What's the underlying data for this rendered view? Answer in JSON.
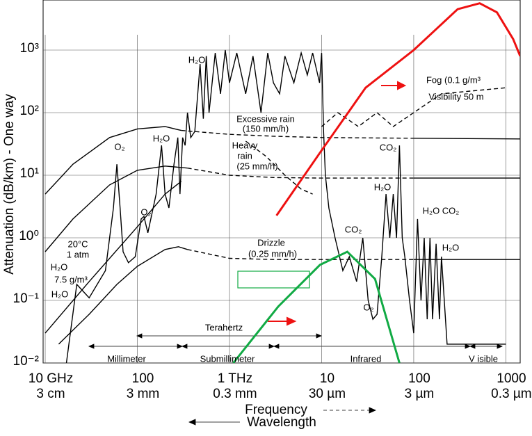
{
  "chart_data": {
    "type": "line",
    "y_label": "Attenuation (dB/km) - One way",
    "x_label": "Frequency",
    "x2_label": "Wavelength",
    "x_log": true,
    "y_log": true,
    "grid": true,
    "xlim": [
      9.49,
      1430000
    ],
    "ylim": [
      0.01,
      6310
    ],
    "xticks": [
      {
        "value": 10,
        "label": "10 GHz"
      },
      100,
      {
        "value": 1000,
        "label": "1 THz"
      },
      {
        "value": 10000,
        "label": "10"
      },
      {
        "value": 100000,
        "label": "100"
      },
      {
        "value": 1000000,
        "label": "1000"
      }
    ],
    "wavelength_ticks": [
      {
        "value": 10,
        "label": "3 cm"
      },
      {
        "value": 100,
        "label": "3 mm"
      },
      {
        "value": 1000,
        "label": "0.3 mm"
      },
      {
        "value": 10000,
        "label": "30 µm"
      },
      {
        "value": 100000,
        "label": "3 µm"
      },
      {
        "value": 1000000,
        "label": "0.3 µm"
      }
    ],
    "yticks": [
      {
        "value": 0.01,
        "label": "10⁻²"
      },
      {
        "value": 0.1,
        "label": "10⁻¹"
      },
      {
        "value": 1,
        "label": "10⁰"
      },
      {
        "value": 10,
        "label": "10¹"
      },
      {
        "value": 100,
        "label": "10²"
      },
      {
        "value": 1000,
        "label": "10³"
      }
    ],
    "series": [
      {
        "color": "#000000",
        "dash": false,
        "x": [
          10,
          20,
          50,
          100,
          200,
          300
        ],
        "values": [
          5,
          15,
          40,
          55,
          60,
          52
        ]
      },
      {
        "color": "#000000",
        "dash": true,
        "x": [
          300,
          1000,
          3000,
          10000,
          100000
        ],
        "values": [
          52,
          45,
          42,
          40,
          39
        ]
      },
      {
        "color": "#000000",
        "dash": false,
        "x": [
          100000,
          1430000
        ],
        "values": [
          39,
          38
        ]
      },
      {
        "color": "#000000",
        "dash": false,
        "x": [
          10,
          20,
          50,
          100,
          200,
          350
        ],
        "values": [
          0.6,
          2,
          7,
          12,
          14,
          13
        ]
      },
      {
        "color": "#000000",
        "dash": true,
        "x": [
          350,
          1000,
          3000,
          10000,
          100000
        ],
        "values": [
          13,
          10,
          9.2,
          9,
          9
        ]
      },
      {
        "color": "#000000",
        "dash": false,
        "x": [
          100000,
          1430000
        ],
        "values": [
          9,
          9
        ]
      },
      {
        "color": "#000000",
        "dash": false,
        "x": [
          14,
          30,
          60,
          100,
          200,
          280,
          350
        ],
        "values": [
          0.02,
          0.06,
          0.18,
          0.35,
          0.65,
          0.72,
          0.65
        ]
      },
      {
        "color": "#000000",
        "dash": true,
        "x": [
          350,
          1000,
          3000,
          10000,
          100000
        ],
        "values": [
          0.65,
          0.47,
          0.45,
          0.45,
          0.45
        ]
      },
      {
        "color": "#000000",
        "dash": false,
        "x": [
          100000,
          1430000
        ],
        "values": [
          0.45,
          0.45
        ]
      },
      {
        "color": "#000000",
        "dash": false,
        "x": [
          10,
          30,
          100,
          200,
          300
        ],
        "values": [
          0.03,
          0.2,
          1.5,
          5,
          8
        ]
      },
      {
        "color": "#000000",
        "dash": true,
        "x": [
          1500,
          2500,
          4000,
          6000,
          8000
        ],
        "values": [
          35,
          20,
          10,
          6,
          5
        ]
      },
      {
        "color": "#000000",
        "dash": true,
        "x": [
          10000,
          15000,
          25000,
          40000,
          60000,
          100000,
          200000,
          1000000
        ],
        "values": [
          60,
          100,
          60,
          100,
          60,
          100,
          200,
          250
        ]
      },
      {
        "color": "#000000",
        "dash": false,
        "x": [
          17,
          22,
          30,
          45,
          55,
          60,
          65,
          70,
          80,
          95,
          110,
          118,
          130,
          160,
          183,
          200,
          220,
          250,
          275,
          290,
          310,
          330,
          350,
          380,
          420,
          480,
          520,
          560,
          600,
          700,
          800,
          900,
          1000,
          1200,
          1500,
          1800,
          2200,
          2600,
          3000,
          3500,
          4000,
          5000,
          6000,
          7000,
          8000,
          9500,
          10000,
          10500,
          11000,
          12000,
          14000,
          17000,
          20000,
          24000,
          28000,
          32000,
          36000,
          40000,
          45000,
          50000,
          55000,
          60000,
          65000,
          70000,
          75000,
          80000,
          90000,
          100000,
          110000,
          120000,
          130000,
          140000,
          150000,
          160000,
          175000,
          190000,
          200000,
          230000,
          500000,
          1000000
        ],
        "values": [
          0.01,
          0.18,
          0.11,
          0.3,
          3,
          15,
          3,
          0.6,
          0.4,
          0.5,
          2,
          2.2,
          1.2,
          5,
          30,
          5,
          3,
          15,
          40,
          5,
          40,
          30,
          100,
          40,
          50,
          600,
          80,
          800,
          100,
          900,
          200,
          1000,
          300,
          900,
          200,
          800,
          100,
          900,
          300,
          200,
          800,
          300,
          900,
          400,
          900,
          300,
          900,
          50,
          10,
          3,
          1,
          0.3,
          0.5,
          0.2,
          1,
          0.1,
          0.05,
          0.06,
          0.5,
          5,
          1,
          5,
          1,
          30,
          1,
          0.5,
          0.1,
          0.03,
          2,
          0.1,
          1,
          0.05,
          1,
          0.05,
          0.8,
          0.05,
          0.5,
          0.02,
          0.02,
          0.02
        ]
      },
      {
        "color": "#ee1111",
        "dash": false,
        "x": [
          3240,
          10000,
          30000,
          100000,
          300000,
          520000,
          800000,
          1200000,
          1430000
        ],
        "values": [
          2.27,
          25,
          250,
          1000,
          4500,
          5600,
          4000,
          1500,
          800
        ]
      },
      {
        "color": "#11aa44",
        "dash": false,
        "x": [
          1100,
          3390,
          9600,
          19000,
          38000,
          70000
        ],
        "values": [
          0.01,
          0.08,
          0.37,
          0.6,
          0.22,
          0.01
        ]
      }
    ],
    "annotations": [
      "20°C",
      "1 atm",
      "H₂O",
      "7.5 g/m³",
      "H₂O",
      "O₂",
      "O₂",
      "H₂O",
      "H₂O",
      "Excessive rain",
      "(150 mm/h)",
      "Heavy",
      "rain",
      "(25 mm/h)",
      "Drizzle",
      "(0.25 mm/h)",
      "Fog (0.1 g/m³",
      "Visibility 50 m",
      "CO₂",
      "H₂O",
      "CO₂",
      "O₂",
      "H₂O CO₂",
      "H₂O",
      "Terahertz",
      "Millimeter",
      "Submillimeter",
      "Infrared",
      "V  isible"
    ]
  }
}
